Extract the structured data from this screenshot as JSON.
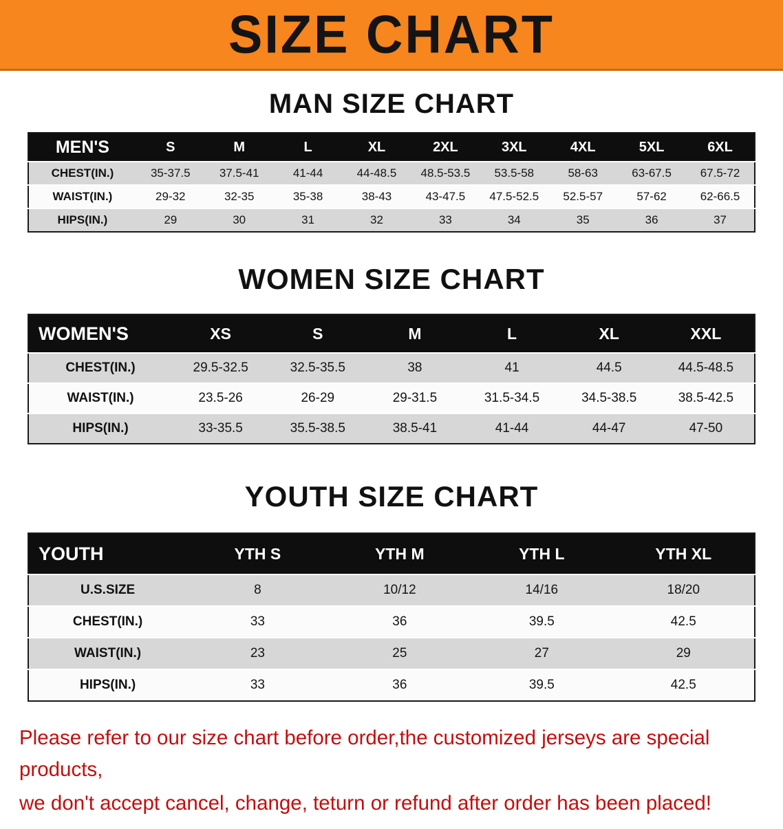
{
  "banner": {
    "title": "SIZE CHART",
    "bg_color": "#f6861d",
    "text_color": "#141414"
  },
  "sections": [
    {
      "id": "men",
      "heading": "MAN SIZE CHART",
      "table": {
        "header_label": "MEN'S",
        "columns": [
          "S",
          "M",
          "L",
          "XL",
          "2XL",
          "3XL",
          "4XL",
          "5XL",
          "6XL"
        ],
        "rows": [
          {
            "label": "CHEST(IN.)",
            "values": [
              "35-37.5",
              "37.5-41",
              "41-44",
              "44-48.5",
              "48.5-53.5",
              "53.5-58",
              "58-63",
              "63-67.5",
              "67.5-72"
            ]
          },
          {
            "label": "WAIST(IN.)",
            "values": [
              "29-32",
              "32-35",
              "35-38",
              "38-43",
              "43-47.5",
              "47.5-52.5",
              "52.5-57",
              "57-62",
              "62-66.5"
            ]
          },
          {
            "label": "HIPS(IN.)",
            "values": [
              "29",
              "30",
              "31",
              "32",
              "33",
              "34",
              "35",
              "36",
              "37"
            ]
          }
        ]
      }
    },
    {
      "id": "women",
      "heading": "WOMEN SIZE CHART",
      "table": {
        "header_label": "WOMEN'S",
        "columns": [
          "XS",
          "S",
          "M",
          "L",
          "XL",
          "XXL"
        ],
        "rows": [
          {
            "label": "CHEST(IN.)",
            "values": [
              "29.5-32.5",
              "32.5-35.5",
              "38",
              "41",
              "44.5",
              "44.5-48.5"
            ]
          },
          {
            "label": "WAIST(IN.)",
            "values": [
              "23.5-26",
              "26-29",
              "29-31.5",
              "31.5-34.5",
              "34.5-38.5",
              "38.5-42.5"
            ]
          },
          {
            "label": "HIPS(IN.)",
            "values": [
              "33-35.5",
              "35.5-38.5",
              "38.5-41",
              "41-44",
              "44-47",
              "47-50"
            ]
          }
        ]
      }
    },
    {
      "id": "youth",
      "heading": "YOUTH SIZE CHART",
      "table": {
        "header_label": "YOUTH",
        "columns": [
          "YTH S",
          "YTH M",
          "YTH L",
          "YTH XL"
        ],
        "rows": [
          {
            "label": "U.S.SIZE",
            "values": [
              "8",
              "10/12",
              "14/16",
              "18/20"
            ]
          },
          {
            "label": "CHEST(IN.)",
            "values": [
              "33",
              "36",
              "39.5",
              "42.5"
            ]
          },
          {
            "label": "WAIST(IN.)",
            "values": [
              "23",
              "25",
              "27",
              "29"
            ]
          },
          {
            "label": "HIPS(IN.)",
            "values": [
              "33",
              "36",
              "39.5",
              "42.5"
            ]
          }
        ]
      }
    }
  ],
  "footer": {
    "line1": "Please refer to our size chart before order,the customized jerseys are special products,",
    "line2": "we don't accept cancel, change, teturn or refund after order has been placed!",
    "text_color": "#c40d0d"
  }
}
